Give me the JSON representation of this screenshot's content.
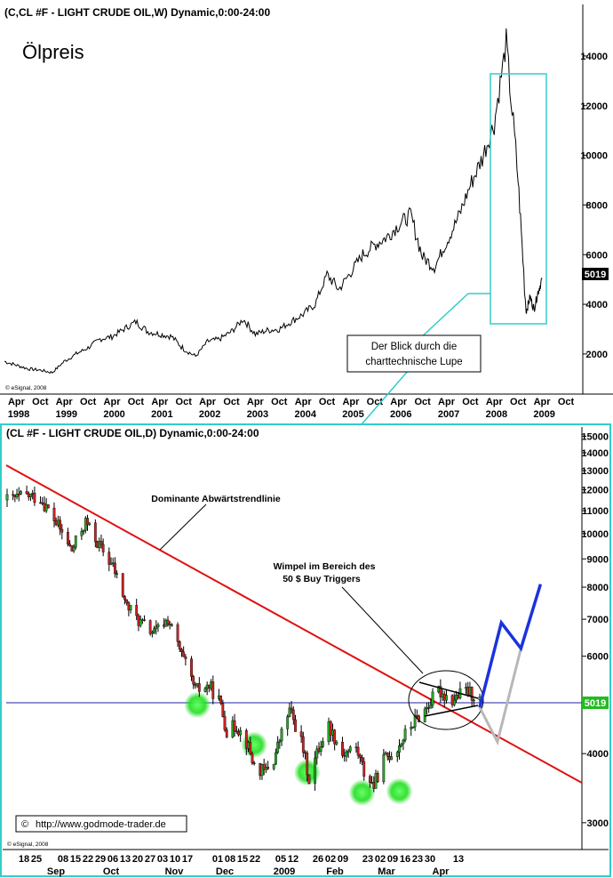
{
  "top_panel": {
    "header": "(C,CL #F - LIGHT CRUDE OIL,W) Dynamic,0:00-24:00",
    "title": "Ölpreis",
    "credit": "© eSignal, 2008",
    "price_badge": "5019",
    "callout": [
      "Der Blick durch die",
      "charttechnische Lupe"
    ]
  },
  "bottom_panel": {
    "header": "(CL #F - LIGHT CRUDE OIL,D) Dynamic,0:00-24:00",
    "trendline_label": "Dominante Abwärtstrendlinie",
    "pennant_label": [
      "Wimpel im Bereich des",
      "50 $ Buy Triggers"
    ],
    "credit": "© eSignal, 2008",
    "url": "http://www.godmode-trader.de",
    "price_badge": "5019"
  },
  "chart_data": [
    {
      "type": "line",
      "title": "Ölpreis",
      "y_ticks": [
        2000,
        4000,
        6000,
        8000,
        10000,
        12000,
        14000
      ],
      "ylim": [
        600,
        15000
      ],
      "x_tick_labels": [
        "Apr",
        "Oct",
        "Apr",
        "Oct",
        "Apr",
        "Oct",
        "Apr",
        "Oct",
        "Apr",
        "Oct",
        "Apr",
        "Oct",
        "Apr",
        "Oct",
        "Apr",
        "Oct",
        "Apr",
        "Oct",
        "Apr",
        "Oct",
        "Apr",
        "Oct",
        "Apr",
        "Oct"
      ],
      "x_year_labels": [
        "1998",
        "1999",
        "2000",
        "2001",
        "2002",
        "2003",
        "2004",
        "2005",
        "2006",
        "2007",
        "2008",
        "2009"
      ],
      "series": [
        {
          "values": [
            [
              "1998-01",
              1700
            ],
            [
              "1998-04",
              1550
            ],
            [
              "1998-07",
              1400
            ],
            [
              "1998-10",
              1350
            ],
            [
              "1999-01",
              1250
            ],
            [
              "1999-04",
              1700
            ],
            [
              "1999-07",
              2000
            ],
            [
              "1999-10",
              2250
            ],
            [
              "2000-01",
              2600
            ],
            [
              "2000-04",
              2700
            ],
            [
              "2000-07",
              3000
            ],
            [
              "2000-10",
              3300
            ],
            [
              "2001-01",
              2900
            ],
            [
              "2001-04",
              2800
            ],
            [
              "2001-07",
              2700
            ],
            [
              "2001-10",
              2200
            ],
            [
              "2002-01",
              1900
            ],
            [
              "2002-04",
              2500
            ],
            [
              "2002-07",
              2600
            ],
            [
              "2002-10",
              2900
            ],
            [
              "2003-01",
              3400
            ],
            [
              "2003-04",
              2800
            ],
            [
              "2003-07",
              2950
            ],
            [
              "2003-10",
              3000
            ],
            [
              "2004-01",
              3300
            ],
            [
              "2004-04",
              3600
            ],
            [
              "2004-07",
              4000
            ],
            [
              "2004-10",
              5200
            ],
            [
              "2005-01",
              4600
            ],
            [
              "2005-04",
              5300
            ],
            [
              "2005-07",
              6000
            ],
            [
              "2005-10",
              6400
            ],
            [
              "2006-01",
              6700
            ],
            [
              "2006-04",
              7200
            ],
            [
              "2006-07",
              7600
            ],
            [
              "2006-10",
              5900
            ],
            [
              "2007-01",
              5500
            ],
            [
              "2007-04",
              6500
            ],
            [
              "2007-07",
              7500
            ],
            [
              "2007-10",
              8800
            ],
            [
              "2008-01",
              9900
            ],
            [
              "2008-04",
              11300
            ],
            [
              "2008-07",
              14500
            ],
            [
              "2008-10",
              9000
            ],
            [
              "2008-12",
              3700
            ],
            [
              "2009-01",
              4300
            ],
            [
              "2009-02",
              3800
            ],
            [
              "2009-03",
              4500
            ],
            [
              "2009-04",
              5019
            ]
          ]
        }
      ],
      "annotations": [
        "Der Blick durch die charttechnische Lupe"
      ]
    },
    {
      "type": "bar",
      "y_scale": "log",
      "y_ticks": [
        3000,
        4000,
        5000,
        6000,
        7000,
        8000,
        9000,
        10000,
        11000,
        12000,
        13000,
        14000,
        15000
      ],
      "y_tick_labels": [
        "3000",
        "4000",
        "",
        "6000",
        "7000",
        "8000",
        "9000",
        "10000",
        "11000",
        "12000",
        "13000",
        "14000",
        "15000"
      ],
      "ylim": [
        2900,
        15300
      ],
      "x_tick_labels": [
        "18",
        "25",
        "08",
        "15",
        "22",
        "29",
        "06",
        "13",
        "20",
        "27",
        "03",
        "10",
        "17",
        "01",
        "08",
        "15",
        "22",
        "05",
        "12",
        "26",
        "02",
        "09",
        "23",
        "02",
        "09",
        "16",
        "23",
        "30",
        "13"
      ],
      "x_month_labels": [
        "Sep",
        "Oct",
        "Nov",
        "Dec",
        "2009",
        "Feb",
        "Mar",
        "Apr"
      ],
      "series": [
        {
          "name": "",
          "values": [
            [
              "2008-08-15",
              11500
            ],
            [
              "2008-08-25",
              11700
            ],
            [
              "2008-09-01",
              11600
            ],
            [
              "2008-09-10",
              10300
            ],
            [
              "2008-09-17",
              9300
            ],
            [
              "2008-09-24",
              10500
            ],
            [
              "2008-10-01",
              9500
            ],
            [
              "2008-10-08",
              8700
            ],
            [
              "2008-10-15",
              7400
            ],
            [
              "2008-10-22",
              6900
            ],
            [
              "2008-10-29",
              6600
            ],
            [
              "2008-11-05",
              7000
            ],
            [
              "2008-11-12",
              6000
            ],
            [
              "2008-11-19",
              5200
            ],
            [
              "2008-11-26",
              5300
            ],
            [
              "2008-12-01",
              5000
            ],
            [
              "2008-12-05",
              4400
            ],
            [
              "2008-12-10",
              4500
            ],
            [
              "2008-12-15",
              4200
            ],
            [
              "2008-12-19",
              3800
            ],
            [
              "2008-12-24",
              3700
            ],
            [
              "2008-12-29",
              3900
            ],
            [
              "2009-01-06",
              4800
            ],
            [
              "2009-01-12",
              4200
            ],
            [
              "2009-01-16",
              3600
            ],
            [
              "2009-01-21",
              4100
            ],
            [
              "2009-01-26",
              4500
            ],
            [
              "2009-02-02",
              4000
            ],
            [
              "2009-02-09",
              4100
            ],
            [
              "2009-02-13",
              3700
            ],
            [
              "2009-02-18",
              3500
            ],
            [
              "2009-02-23",
              3900
            ],
            [
              "2009-03-02",
              4100
            ],
            [
              "2009-03-09",
              4500
            ],
            [
              "2009-03-16",
              4800
            ],
            [
              "2009-03-23",
              5200
            ],
            [
              "2009-03-30",
              5000
            ],
            [
              "2009-04-06",
              5200
            ],
            [
              "2009-04-13",
              5019
            ]
          ]
        }
      ],
      "annotations": [
        "Dominante Abwärtstrendlinie",
        "Wimpel im Bereich des 50 $ Buy Triggers"
      ],
      "lows_highlighted": [
        [
          "2008-11-20",
          4900
        ],
        [
          "2008-12-19",
          4150
        ],
        [
          "2009-01-15",
          3700
        ],
        [
          "2009-02-12",
          3400
        ],
        [
          "2009-03-03",
          3420
        ]
      ],
      "forecast": {
        "blue": [
          [
            "2009-04-13",
            4850
          ],
          [
            "2009-04-24",
            6900
          ],
          [
            "2009-05-04",
            6200
          ],
          [
            "2009-05-14",
            8100
          ]
        ],
        "gray": [
          [
            "2009-04-13",
            4850
          ],
          [
            "2009-04-22",
            4200
          ],
          [
            "2009-05-04",
            6200
          ]
        ]
      },
      "horizontal_line": 5019
    }
  ]
}
